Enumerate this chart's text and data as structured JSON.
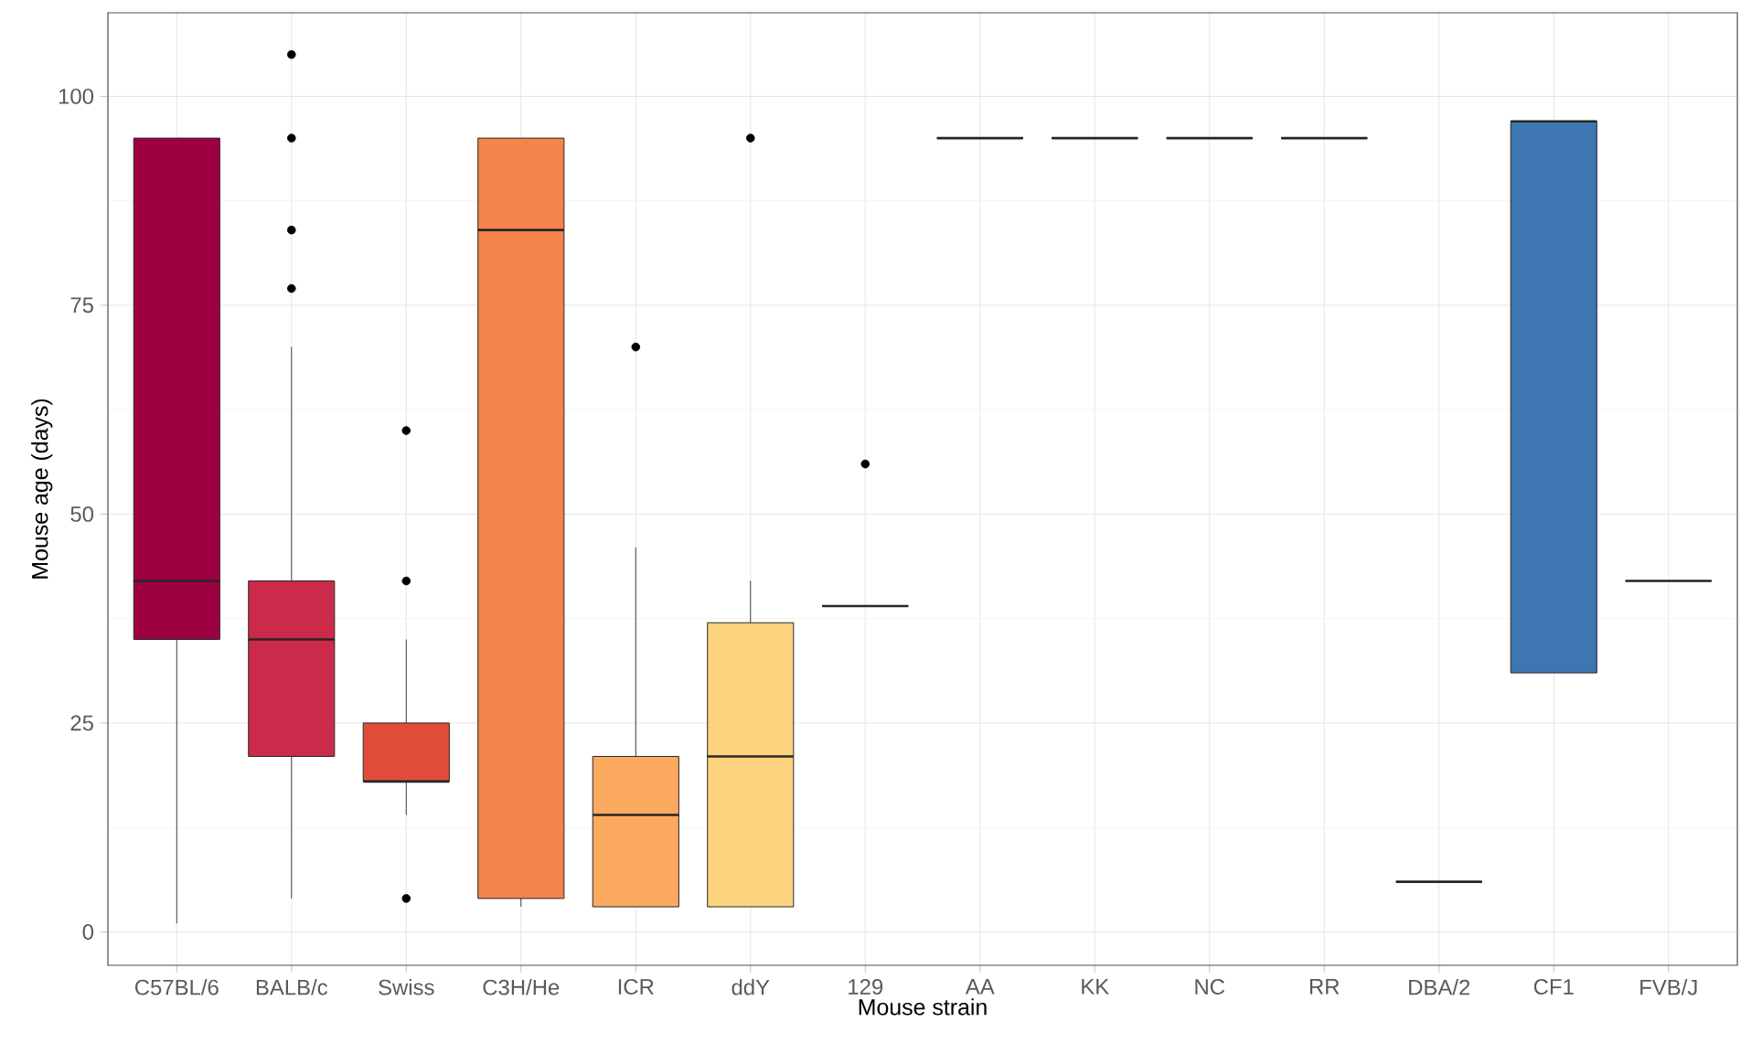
{
  "chart_data": {
    "type": "box",
    "xlabel": "Mouse strain",
    "ylabel": "Mouse age (days)",
    "categories": [
      "C57BL/6",
      "BALB/c",
      "Swiss",
      "C3H/He",
      "ICR",
      "ddY",
      "129",
      "AA",
      "KK",
      "NC",
      "RR",
      "DBA/2",
      "CF1",
      "FVB/J"
    ],
    "colors": [
      "#9e0142",
      "#cc2a4a",
      "#e04c3a",
      "#f5844a",
      "#fcaa60",
      "#fdd27e",
      "#262626",
      "#262626",
      "#262626",
      "#262626",
      "#262626",
      "#262626",
      "#3d76b0",
      "#262626"
    ],
    "boxes": [
      {
        "low": 1,
        "q1": 35,
        "median": 42,
        "q3": 95,
        "high": 95
      },
      {
        "low": 4,
        "q1": 21,
        "median": 35,
        "q3": 42,
        "high": 70,
        "outliers": [
          77,
          84,
          95,
          105
        ]
      },
      {
        "low": 14,
        "q1": 18,
        "median": 18,
        "q3": 25,
        "high": 35,
        "outliers": [
          4,
          42,
          60
        ]
      },
      {
        "low": 3,
        "q1": 4,
        "median": 84,
        "q3": 95,
        "high": 95
      },
      {
        "low": 3,
        "q1": 3,
        "median": 14,
        "q3": 21,
        "high": 46,
        "outliers": [
          70
        ]
      },
      {
        "low": 3,
        "q1": 3,
        "median": 21,
        "q3": 37,
        "high": 42,
        "outliers": [
          95
        ]
      },
      {
        "low": 39,
        "q1": 39,
        "median": 39,
        "q3": 39,
        "high": 39,
        "outliers": [
          56
        ]
      },
      {
        "low": 95,
        "q1": 95,
        "median": 95,
        "q3": 95,
        "high": 95
      },
      {
        "low": 95,
        "q1": 95,
        "median": 95,
        "q3": 95,
        "high": 95
      },
      {
        "low": 95,
        "q1": 95,
        "median": 95,
        "q3": 95,
        "high": 95
      },
      {
        "low": 95,
        "q1": 95,
        "median": 95,
        "q3": 95,
        "high": 95
      },
      {
        "low": 6,
        "q1": 6,
        "median": 6,
        "q3": 6,
        "high": 6
      },
      {
        "low": 31,
        "q1": 31,
        "median": 97,
        "q3": 97,
        "high": 97
      },
      {
        "low": 42,
        "q1": 42,
        "median": 42,
        "q3": 42,
        "high": 42
      }
    ],
    "ylim": [
      -4,
      110
    ],
    "yticks": [
      0,
      25,
      50,
      75,
      100
    ],
    "grid": true
  }
}
